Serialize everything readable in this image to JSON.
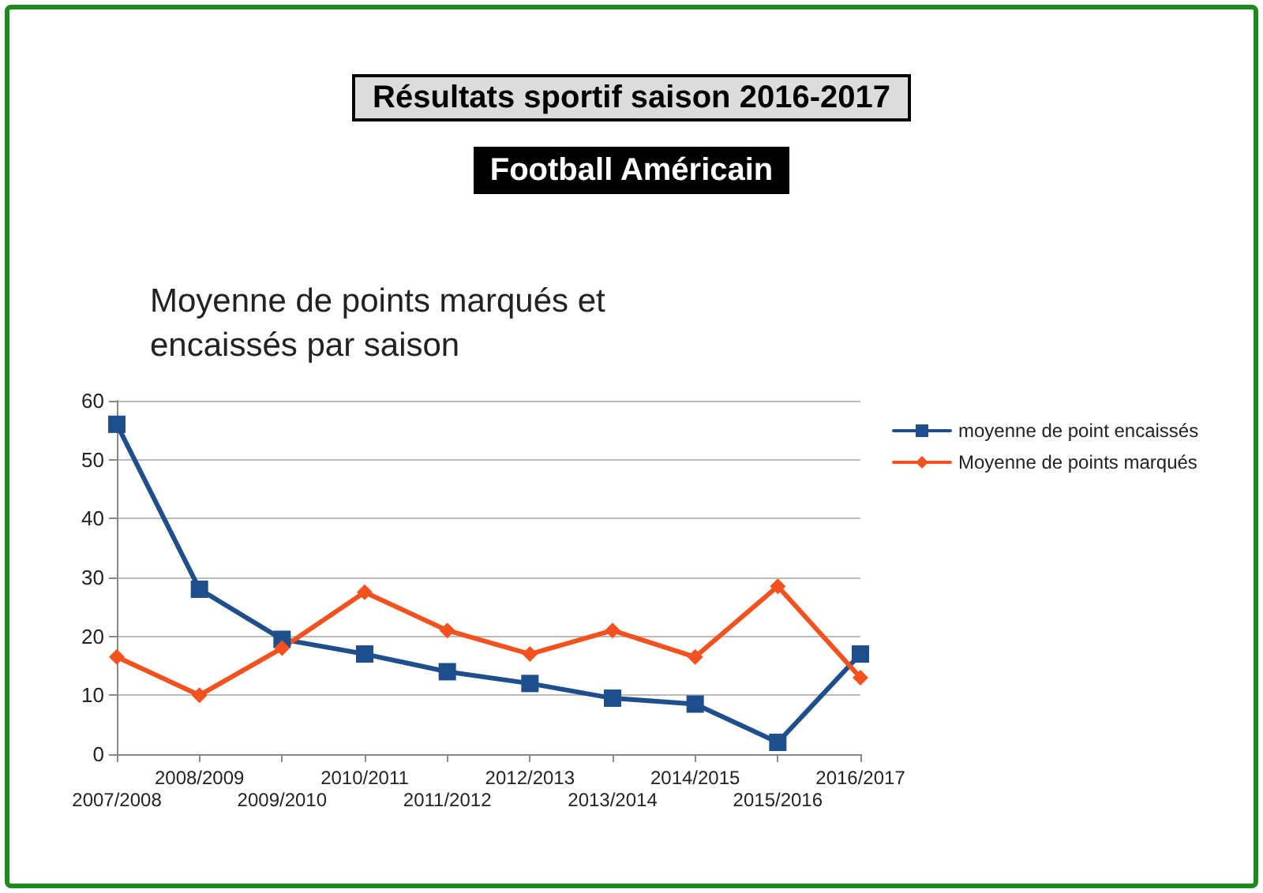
{
  "chart_data": {
    "type": "line",
    "title": "Résultats sportif saison 2016-2017",
    "subtitle": "Football Américain",
    "annotations": [
      "Moyenne de points marqués et\nencaissés par saison"
    ],
    "categories": [
      "2007/2008",
      "2008/2009",
      "2009/2010",
      "2010/2011",
      "2011/2012",
      "2012/2013",
      "2013/2014",
      "2014/2015",
      "2015/2016",
      "2016/2017"
    ],
    "series": [
      {
        "name": "moyenne de point encaissés",
        "color": "#1f4e8c",
        "marker": "square",
        "values": [
          56,
          28,
          19.5,
          17,
          14,
          12,
          9.5,
          8.5,
          2,
          17
        ]
      },
      {
        "name": "Moyenne de points marqués",
        "color": "#f4511e",
        "marker": "diamond",
        "values": [
          16.5,
          10,
          18,
          27.5,
          21,
          17,
          21,
          16.5,
          28.5,
          13
        ]
      }
    ],
    "ylim": [
      0,
      60
    ],
    "yticks": [
      0,
      10,
      20,
      30,
      40,
      50,
      60
    ],
    "grid": "y",
    "legend": "right",
    "line_style": "solid"
  }
}
